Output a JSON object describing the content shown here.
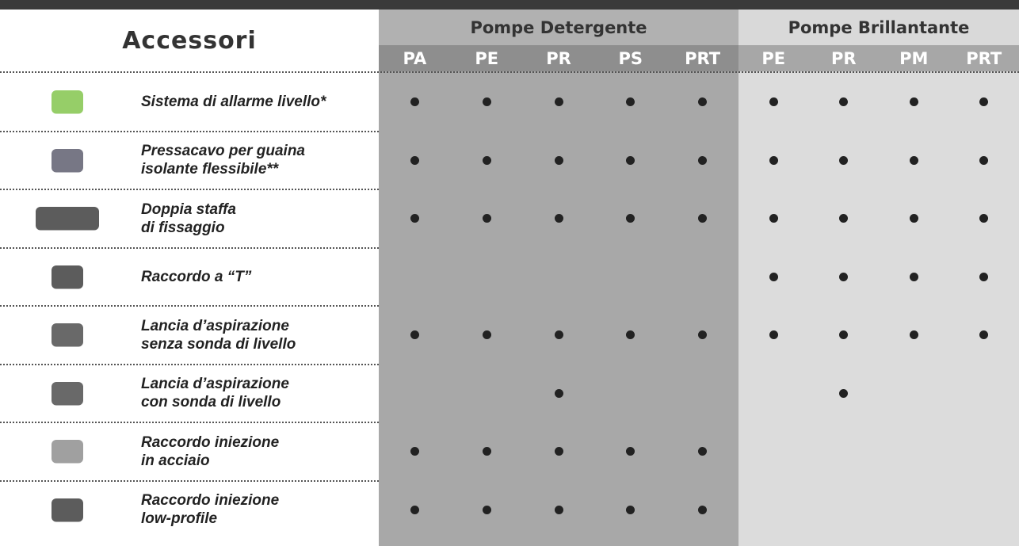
{
  "header": {
    "title": "Accessori",
    "groups": [
      {
        "name": "Pompe Detergente",
        "columns": [
          "PA",
          "PE",
          "PR",
          "PS",
          "PRT"
        ]
      },
      {
        "name": "Pompe Brillantante",
        "columns": [
          "PE",
          "PR",
          "PM",
          "PRT"
        ]
      }
    ]
  },
  "rows": [
    {
      "name": [
        "Sistema di allarme livello*"
      ],
      "marks": [
        true,
        true,
        true,
        true,
        true,
        true,
        true,
        true,
        true
      ]
    },
    {
      "name": [
        "Pressacavo per guaina",
        "isolante flessibile**"
      ],
      "marks": [
        true,
        true,
        true,
        true,
        true,
        true,
        true,
        true,
        true
      ]
    },
    {
      "name": [
        "Doppia staffa",
        "di fissaggio"
      ],
      "marks": [
        true,
        true,
        true,
        true,
        true,
        true,
        true,
        true,
        true
      ]
    },
    {
      "name": [
        "Raccordo a “T”"
      ],
      "marks": [
        false,
        false,
        false,
        false,
        false,
        true,
        true,
        true,
        true
      ]
    },
    {
      "name": [
        "Lancia d’aspirazione",
        "senza sonda di livello"
      ],
      "marks": [
        true,
        true,
        true,
        true,
        true,
        true,
        true,
        true,
        true
      ]
    },
    {
      "name": [
        "Lancia d’aspirazione",
        "con sonda di livello"
      ],
      "marks": [
        false,
        false,
        true,
        false,
        false,
        false,
        true,
        false,
        false
      ]
    },
    {
      "name": [
        "Raccordo iniezione",
        "in acciaio"
      ],
      "marks": [
        true,
        true,
        true,
        true,
        true,
        false,
        false,
        false,
        false
      ]
    },
    {
      "name": [
        "Raccordo iniezione",
        "low-profile"
      ],
      "marks": [
        true,
        true,
        true,
        true,
        true,
        false,
        false,
        false,
        false
      ]
    }
  ]
}
